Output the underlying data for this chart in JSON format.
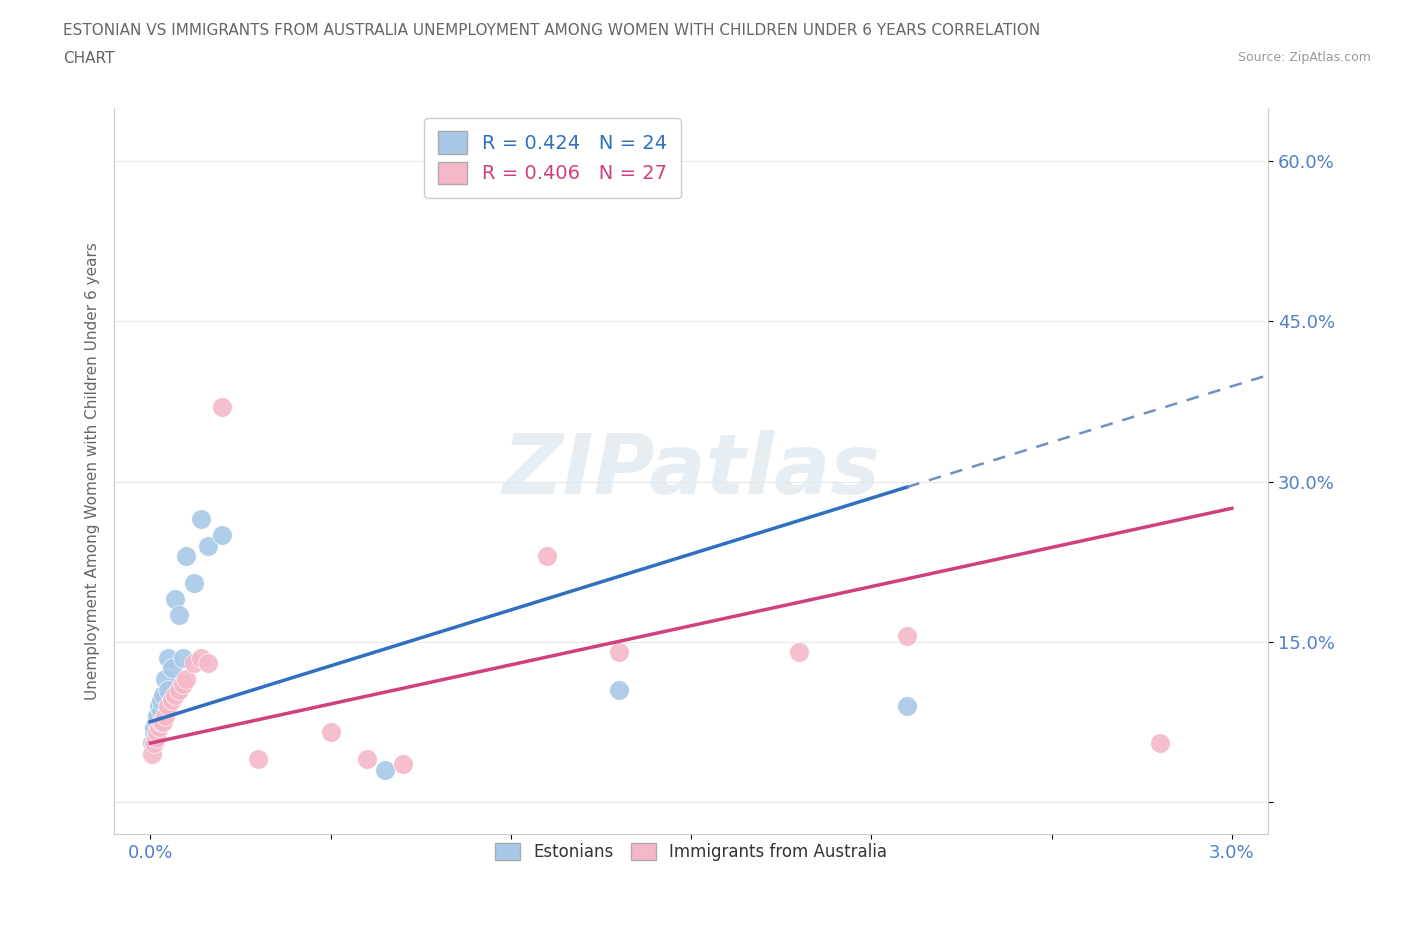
{
  "title_line1": "ESTONIAN VS IMMIGRANTS FROM AUSTRALIA UNEMPLOYMENT AMONG WOMEN WITH CHILDREN UNDER 6 YEARS CORRELATION",
  "title_line2": "CHART",
  "source": "Source: ZipAtlas.com",
  "ylabel": "Unemployment Among Women with Children Under 6 years",
  "xlim": [
    -0.001,
    0.031
  ],
  "ylim": [
    -0.03,
    0.65
  ],
  "xtick_positions": [
    0.0,
    0.005,
    0.01,
    0.015,
    0.02,
    0.025,
    0.03
  ],
  "xticklabels": [
    "0.0%",
    "",
    "",
    "",
    "",
    "",
    "3.0%"
  ],
  "ytick_positions": [
    0.0,
    0.15,
    0.3,
    0.45,
    0.6
  ],
  "yticklabels": [
    "",
    "15.0%",
    "30.0%",
    "45.0%",
    "60.0%"
  ],
  "legend_r1": "R = 0.424",
  "legend_n1": "N = 24",
  "legend_r2": "R = 0.406",
  "legend_n2": "N = 27",
  "estonian_color": "#a8c8e8",
  "immigrant_color": "#f4b8c8",
  "estonian_line_color": "#3070c0",
  "immigrant_line_color": "#d04080",
  "dashed_line_color": "#7090c0",
  "background_color": "#ffffff",
  "grid_color": "#e8e8e8",
  "title_color": "#666666",
  "axis_label_color": "#666666",
  "tick_label_color": "#5080c8",
  "source_color": "#999999",
  "watermark_color": "#dce8f0",
  "estonian_x": [
    5e-05,
    0.0001,
    0.0001,
    0.00015,
    0.0002,
    0.00025,
    0.0003,
    0.0003,
    0.00035,
    0.0004,
    0.0005,
    0.0005,
    0.0006,
    0.0007,
    0.0008,
    0.0009,
    0.001,
    0.0012,
    0.0014,
    0.0016,
    0.002,
    0.0065,
    0.013,
    0.021
  ],
  "estonian_y": [
    0.055,
    0.065,
    0.07,
    0.075,
    0.08,
    0.09,
    0.085,
    0.095,
    0.1,
    0.115,
    0.105,
    0.135,
    0.125,
    0.19,
    0.175,
    0.135,
    0.23,
    0.205,
    0.265,
    0.24,
    0.25,
    0.03,
    0.105,
    0.09
  ],
  "immigrant_x": [
    5e-05,
    0.0001,
    0.00015,
    0.0002,
    0.00025,
    0.0003,
    0.00035,
    0.0004,
    0.0005,
    0.0006,
    0.0007,
    0.0008,
    0.0009,
    0.001,
    0.0012,
    0.0014,
    0.0016,
    0.002,
    0.003,
    0.005,
    0.006,
    0.007,
    0.011,
    0.013,
    0.018,
    0.021,
    0.028
  ],
  "immigrant_y": [
    0.045,
    0.055,
    0.06,
    0.065,
    0.07,
    0.075,
    0.075,
    0.08,
    0.09,
    0.095,
    0.1,
    0.105,
    0.11,
    0.115,
    0.13,
    0.135,
    0.13,
    0.37,
    0.04,
    0.065,
    0.04,
    0.035,
    0.23,
    0.14,
    0.14,
    0.155,
    0.055
  ]
}
